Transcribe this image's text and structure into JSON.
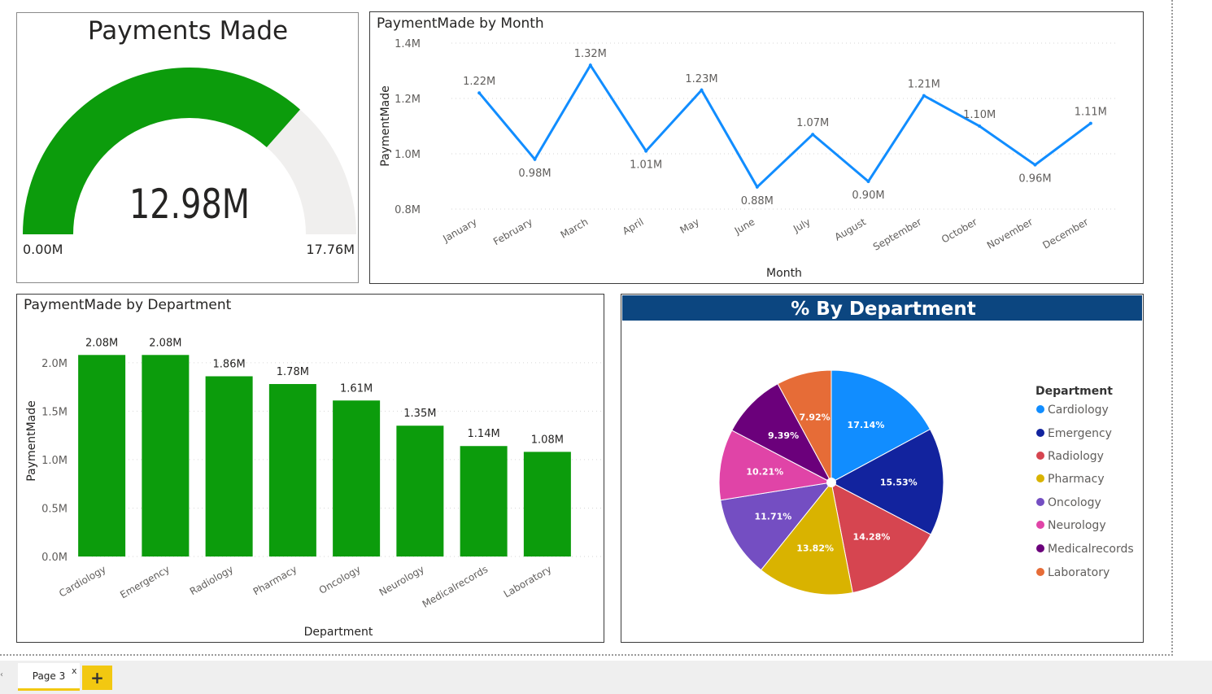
{
  "gauge": {
    "title": "Payments Made",
    "value_label": "12.98M",
    "min_label": "0.00M",
    "max_label": "17.76M",
    "value": 12.98,
    "max": 17.76,
    "fill_color": "#0c9c0c",
    "track_color": "#f0efee"
  },
  "line_chart": {
    "title": "PaymentMade by Month",
    "chart_data": {
      "type": "line",
      "x": [
        "January",
        "February",
        "March",
        "April",
        "May",
        "June",
        "July",
        "August",
        "September",
        "October",
        "November",
        "December"
      ],
      "series": [
        {
          "values": [
            1.22,
            0.98,
            1.32,
            1.01,
            1.23,
            0.88,
            1.07,
            0.9,
            1.21,
            1.1,
            0.96,
            1.11
          ]
        }
      ],
      "data_labels": [
        "1.22M",
        "0.98M",
        "1.32M",
        "1.01M",
        "1.23M",
        "0.88M",
        "1.07M",
        "0.90M",
        "1.21M",
        "1.10M",
        "0.96M",
        "1.11M"
      ],
      "xlabel": "Month",
      "ylabel": "PaymentMade",
      "yticks": [
        "0.8M",
        "1.0M",
        "1.2M",
        "1.4M"
      ],
      "ylim": [
        0.8,
        1.4
      ],
      "grid": true,
      "color": "#118dff"
    }
  },
  "bar_chart": {
    "title": "PaymentMade by Department",
    "chart_data": {
      "type": "bar",
      "categories": [
        "Cardiology",
        "Emergency",
        "Radiology",
        "Pharmacy",
        "Oncology",
        "Neurology",
        "Medicalrecords",
        "Laboratory"
      ],
      "values": [
        2.08,
        2.08,
        1.86,
        1.78,
        1.61,
        1.35,
        1.14,
        1.08
      ],
      "data_labels": [
        "2.08M",
        "2.08M",
        "1.86M",
        "1.78M",
        "1.61M",
        "1.35M",
        "1.14M",
        "1.08M"
      ],
      "xlabel": "Department",
      "ylabel": "PaymentMade",
      "yticks": [
        "0.0M",
        "0.5M",
        "1.0M",
        "1.5M",
        "2.0M"
      ],
      "ylim": [
        0,
        2.2
      ],
      "grid": true,
      "color": "#0c9c0c"
    }
  },
  "pie_chart": {
    "title": "% By Department",
    "header_color": "#0c4680",
    "legend_title": "Department",
    "legend_placement": "right",
    "chart_data": {
      "type": "pie",
      "series": [
        {
          "name": "Cardiology",
          "value": 17.14,
          "label": "17.14%",
          "color": "#118dff"
        },
        {
          "name": "Emergency",
          "value": 15.53,
          "label": "15.53%",
          "color": "#12239e"
        },
        {
          "name": "Radiology",
          "value": 14.28,
          "label": "14.28%",
          "color": "#d64550"
        },
        {
          "name": "Pharmacy",
          "value": 13.82,
          "label": "13.82%",
          "color": "#d9b300"
        },
        {
          "name": "Oncology",
          "value": 11.71,
          "label": "11.71%",
          "color": "#744ec2"
        },
        {
          "name": "Neurology",
          "value": 10.21,
          "label": "10.21%",
          "color": "#e044a7"
        },
        {
          "name": "Medicalrecords",
          "value": 9.39,
          "label": "9.39%",
          "color": "#6b007b"
        },
        {
          "name": "Laboratory",
          "value": 7.92,
          "label": "7.92%",
          "color": "#e66c37"
        }
      ]
    }
  },
  "pages": {
    "tabs": [
      {
        "label": "Page 3"
      }
    ],
    "close_icon": "x",
    "add_icon": "+"
  }
}
